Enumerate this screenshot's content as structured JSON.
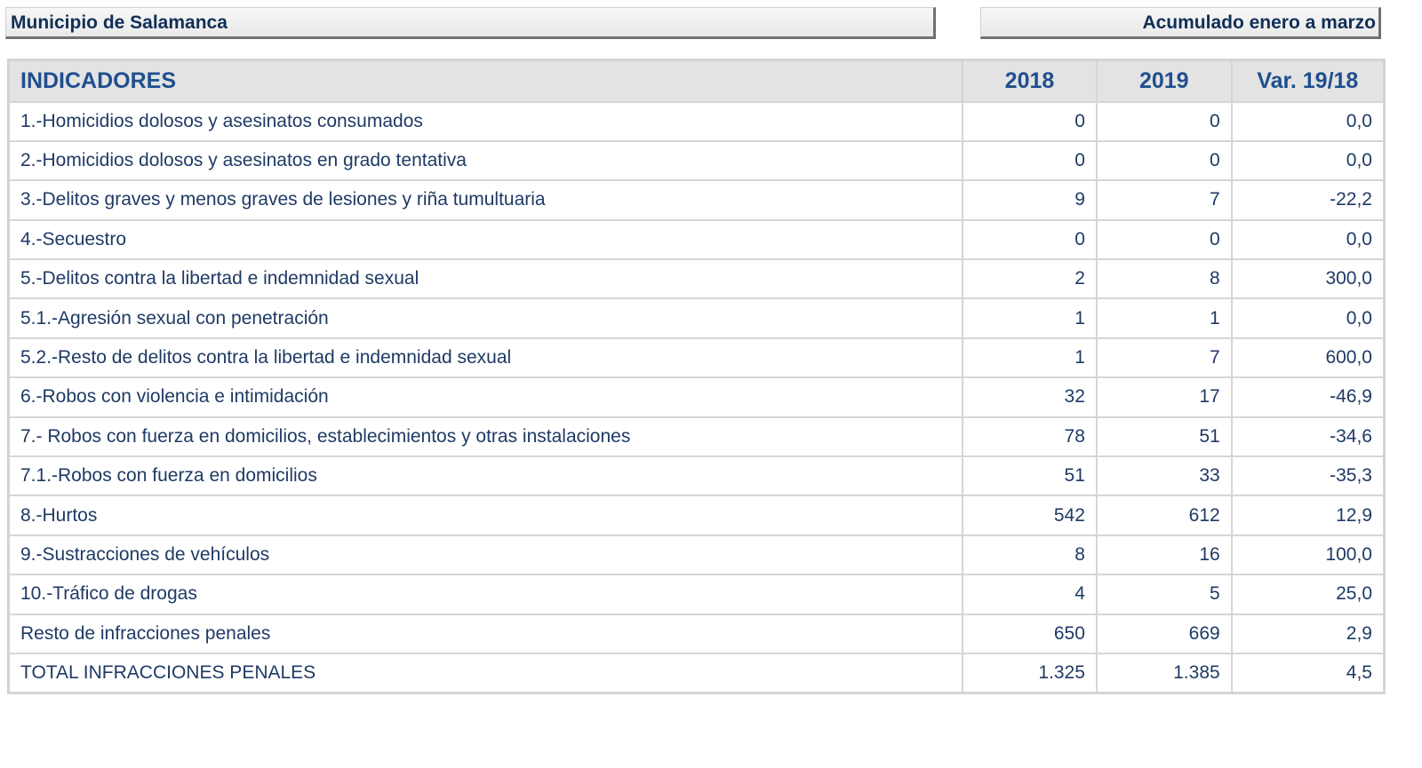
{
  "header": {
    "municipality": "Municipio de Salamanca",
    "period": "Acumulado enero a marzo"
  },
  "table": {
    "columns": [
      "INDICADORES",
      "2018",
      "2019",
      "Var. 19/18"
    ],
    "rows": [
      [
        "1.-Homicidios dolosos y asesinatos consumados",
        "0",
        "0",
        "0,0"
      ],
      [
        "2.-Homicidios dolosos y asesinatos en grado tentativa",
        "0",
        "0",
        "0,0"
      ],
      [
        "3.-Delitos graves y menos graves de lesiones y riña tumultuaria",
        "9",
        "7",
        "-22,2"
      ],
      [
        "4.-Secuestro",
        "0",
        "0",
        "0,0"
      ],
      [
        "5.-Delitos contra la libertad e indemnidad sexual",
        "2",
        "8",
        "300,0"
      ],
      [
        "5.1.-Agresión sexual con penetración",
        "1",
        "1",
        "0,0"
      ],
      [
        "5.2.-Resto de delitos contra la libertad e indemnidad sexual",
        "1",
        "7",
        "600,0"
      ],
      [
        "6.-Robos con violencia e intimidación",
        "32",
        "17",
        "-46,9"
      ],
      [
        "7.- Robos con fuerza en domicilios, establecimientos y otras instalaciones",
        "78",
        "51",
        "-34,6"
      ],
      [
        "7.1.-Robos con fuerza en domicilios",
        "51",
        "33",
        "-35,3"
      ],
      [
        "8.-Hurtos",
        "542",
        "612",
        "12,9"
      ],
      [
        "9.-Sustracciones de vehículos",
        "8",
        "16",
        "100,0"
      ],
      [
        "10.-Tráfico de drogas",
        "4",
        "5",
        "25,0"
      ],
      [
        "Resto de infracciones penales",
        "650",
        "669",
        "2,9"
      ],
      [
        "TOTAL INFRACCIONES PENALES",
        "1.325",
        "1.385",
        "4,5"
      ]
    ]
  }
}
